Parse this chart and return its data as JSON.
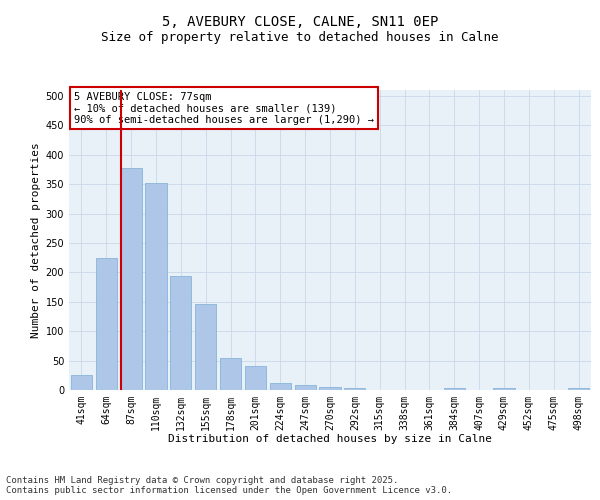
{
  "title": "5, AVEBURY CLOSE, CALNE, SN11 0EP",
  "subtitle": "Size of property relative to detached houses in Calne",
  "xlabel": "Distribution of detached houses by size in Calne",
  "ylabel": "Number of detached properties",
  "categories": [
    "41sqm",
    "64sqm",
    "87sqm",
    "110sqm",
    "132sqm",
    "155sqm",
    "178sqm",
    "201sqm",
    "224sqm",
    "247sqm",
    "270sqm",
    "292sqm",
    "315sqm",
    "338sqm",
    "361sqm",
    "384sqm",
    "407sqm",
    "429sqm",
    "452sqm",
    "475sqm",
    "498sqm"
  ],
  "values": [
    25,
    225,
    378,
    352,
    193,
    146,
    55,
    40,
    12,
    8,
    5,
    3,
    0,
    0,
    0,
    3,
    0,
    3,
    0,
    0,
    3
  ],
  "bar_color": "#aec6e8",
  "bar_edge_color": "#7aadd4",
  "vline_color": "#cc0000",
  "vline_x": 1.575,
  "annotation_box_text": "5 AVEBURY CLOSE: 77sqm\n← 10% of detached houses are smaller (139)\n90% of semi-detached houses are larger (1,290) →",
  "annotation_box_color": "#cc0000",
  "annotation_box_bg": "#ffffff",
  "ylim": [
    0,
    510
  ],
  "yticks": [
    0,
    50,
    100,
    150,
    200,
    250,
    300,
    350,
    400,
    450,
    500
  ],
  "grid_color": "#c8d8e8",
  "background_color": "#e8f0f8",
  "footer_text": "Contains HM Land Registry data © Crown copyright and database right 2025.\nContains public sector information licensed under the Open Government Licence v3.0.",
  "title_fontsize": 10,
  "subtitle_fontsize": 9,
  "axis_label_fontsize": 8,
  "tick_fontsize": 7,
  "annotation_fontsize": 7.5,
  "footer_fontsize": 6.5
}
